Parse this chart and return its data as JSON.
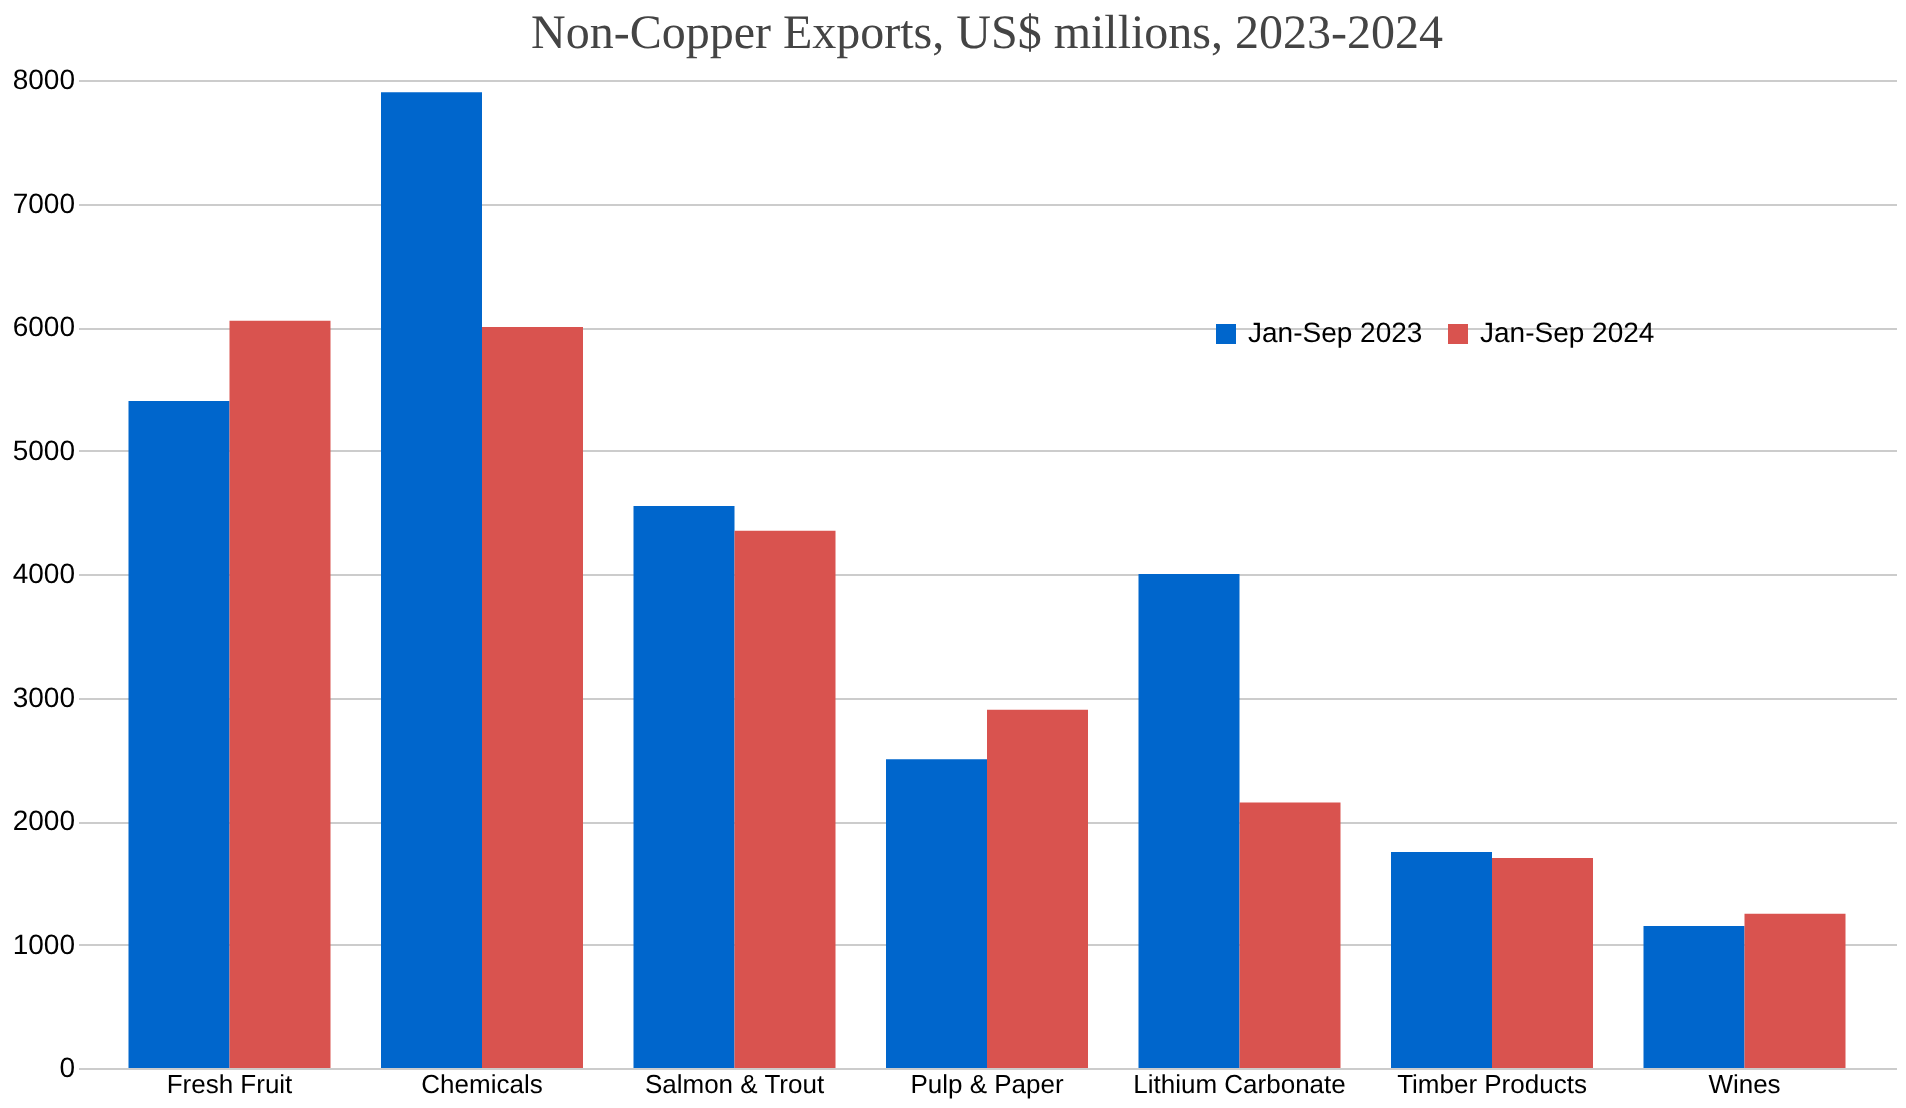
{
  "chart_data": {
    "type": "bar",
    "title": "Non-Copper Exports, US$ millions, 2023-2024",
    "categories": [
      "Fresh Fruit",
      "Chemicals",
      "Salmon & Trout",
      "Pulp & Paper",
      "Lithium Carbonate",
      "Timber Products",
      "Wines"
    ],
    "series": [
      {
        "name": "Jan-Sep 2023",
        "color": "#0066cc",
        "values": [
          5400,
          7900,
          4550,
          2500,
          4000,
          1750,
          1150
        ]
      },
      {
        "name": "Jan-Sep 2024",
        "color": "#d9534f",
        "values": [
          6050,
          6000,
          4350,
          2900,
          2150,
          1700,
          1250
        ]
      }
    ],
    "ylim": [
      0,
      8000
    ],
    "yticks": [
      0,
      1000,
      2000,
      3000,
      4000,
      5000,
      6000,
      7000,
      8000
    ],
    "grid": "y",
    "legend": "top right"
  }
}
